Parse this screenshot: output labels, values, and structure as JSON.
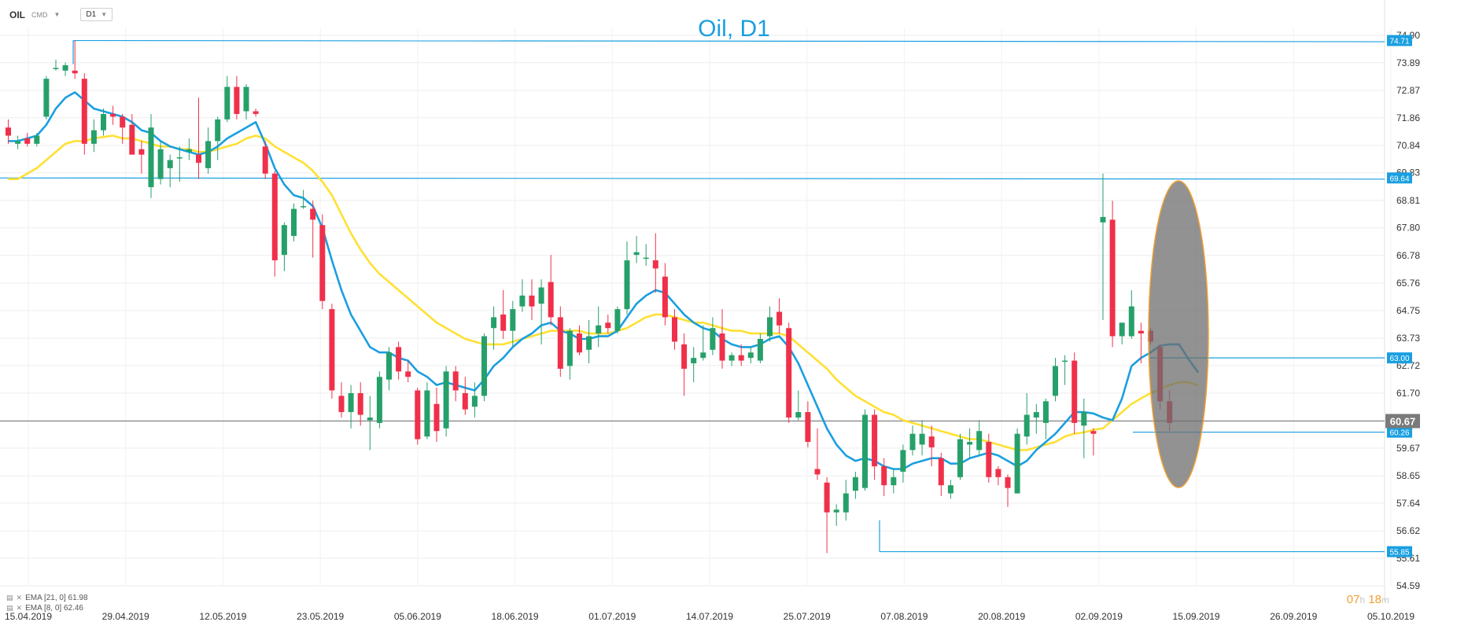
{
  "toolbar": {
    "symbol": "OIL",
    "market": "CMD",
    "timeframe": "D1"
  },
  "chart_title": "Oil, D1",
  "legend": [
    {
      "label": "EMA [21, 0] 61.98"
    },
    {
      "label": "EMA [8, 0] 62.46"
    }
  ],
  "timer": {
    "h": "07",
    "hu": "h",
    "m": "18",
    "mu": "m"
  },
  "colors": {
    "up": "#26a06a",
    "down": "#f0304a",
    "ema21": "#ffe033",
    "ema8": "#1a9fe0",
    "level": "#1a9fe0",
    "current": "#909090"
  },
  "chart_data": {
    "type": "candlestick",
    "title": "Oil, D1",
    "x_ticks": [
      "15.04.2019",
      "29.04.2019",
      "12.05.2019",
      "23.05.2019",
      "05.06.2019",
      "18.06.2019",
      "01.07.2019",
      "14.07.2019",
      "25.07.2019",
      "07.08.2019",
      "20.08.2019",
      "02.09.2019",
      "15.09.2019",
      "26.09.2019",
      "05.10.2019"
    ],
    "y_ticks": [
      "74.90",
      "73.89",
      "72.87",
      "71.86",
      "70.84",
      "69.83",
      "68.81",
      "67.80",
      "66.78",
      "65.76",
      "64.75",
      "63.73",
      "62.72",
      "61.70",
      "60.69",
      "59.67",
      "58.65",
      "57.64",
      "56.62",
      "55.61",
      "54.59"
    ],
    "ylim": [
      54.59,
      74.9
    ],
    "candles": [
      [
        71.5,
        71.8,
        70.9,
        71.2
      ],
      [
        70.9,
        71.2,
        70.7,
        71.0
      ],
      [
        71.1,
        71.3,
        70.8,
        70.9
      ],
      [
        70.9,
        71.3,
        70.8,
        71.2
      ],
      [
        71.9,
        73.4,
        71.8,
        73.3
      ],
      [
        73.7,
        74.0,
        73.6,
        73.7
      ],
      [
        73.6,
        73.9,
        73.4,
        73.8
      ],
      [
        73.6,
        74.7,
        73.3,
        73.5
      ],
      [
        73.3,
        73.5,
        70.5,
        70.9
      ],
      [
        70.9,
        71.8,
        70.6,
        71.4
      ],
      [
        71.4,
        72.2,
        71.2,
        72.0
      ],
      [
        72.0,
        72.3,
        71.6,
        71.9
      ],
      [
        71.9,
        72.0,
        70.9,
        71.5
      ],
      [
        71.6,
        72.0,
        70.5,
        70.5
      ],
      [
        70.7,
        71.0,
        69.8,
        70.5
      ],
      [
        69.3,
        72.0,
        68.9,
        71.5
      ],
      [
        69.6,
        71.0,
        69.4,
        70.7
      ],
      [
        70.0,
        70.5,
        69.3,
        70.3
      ],
      [
        70.4,
        70.8,
        69.5,
        70.4
      ],
      [
        70.6,
        71.1,
        70.3,
        70.7
      ],
      [
        70.5,
        72.6,
        69.6,
        70.2
      ],
      [
        70.0,
        71.5,
        69.8,
        71.0
      ],
      [
        71.0,
        71.9,
        70.3,
        71.8
      ],
      [
        71.8,
        73.4,
        71.7,
        73.0
      ],
      [
        73.0,
        73.4,
        71.8,
        72.0
      ],
      [
        72.1,
        73.1,
        71.8,
        73.0
      ],
      [
        72.1,
        72.2,
        71.9,
        72.0
      ],
      [
        70.8,
        71.0,
        69.6,
        69.8
      ],
      [
        69.8,
        69.9,
        66.0,
        66.6
      ],
      [
        66.8,
        68.0,
        66.2,
        67.9
      ],
      [
        67.5,
        68.7,
        67.3,
        68.5
      ],
      [
        68.6,
        69.2,
        68.5,
        68.6
      ],
      [
        68.5,
        68.8,
        66.7,
        68.1
      ],
      [
        67.9,
        68.3,
        64.8,
        65.1
      ],
      [
        64.8,
        65.0,
        61.5,
        61.8
      ],
      [
        61.6,
        62.1,
        60.8,
        61.0
      ],
      [
        61.0,
        62.0,
        60.4,
        61.7
      ],
      [
        61.7,
        62.1,
        60.5,
        60.9
      ],
      [
        60.7,
        61.6,
        59.6,
        60.8
      ],
      [
        60.6,
        62.5,
        60.4,
        62.3
      ],
      [
        62.2,
        63.4,
        61.8,
        63.2
      ],
      [
        63.4,
        63.6,
        62.2,
        62.5
      ],
      [
        62.5,
        62.9,
        62.1,
        62.3
      ],
      [
        61.8,
        61.9,
        59.8,
        60.0
      ],
      [
        60.1,
        62.1,
        60.0,
        61.8
      ],
      [
        61.3,
        61.9,
        59.9,
        60.3
      ],
      [
        60.4,
        62.7,
        60.1,
        62.5
      ],
      [
        62.5,
        62.7,
        61.4,
        61.8
      ],
      [
        61.7,
        62.3,
        60.9,
        61.1
      ],
      [
        61.2,
        62.1,
        60.8,
        61.6
      ],
      [
        61.6,
        63.9,
        61.4,
        63.8
      ],
      [
        64.1,
        64.9,
        63.3,
        64.5
      ],
      [
        64.6,
        65.5,
        63.7,
        64.0
      ],
      [
        64.0,
        65.1,
        63.4,
        64.8
      ],
      [
        64.9,
        65.9,
        64.7,
        65.3
      ],
      [
        65.3,
        65.9,
        64.4,
        64.9
      ],
      [
        65.0,
        65.9,
        63.5,
        65.6
      ],
      [
        65.8,
        66.8,
        64.2,
        64.5
      ],
      [
        64.5,
        64.9,
        62.3,
        62.6
      ],
      [
        62.7,
        64.1,
        62.2,
        64.0
      ],
      [
        63.9,
        64.2,
        63.1,
        63.2
      ],
      [
        63.3,
        64.4,
        62.8,
        63.8
      ],
      [
        63.9,
        64.9,
        63.4,
        64.2
      ],
      [
        64.3,
        64.6,
        63.9,
        64.1
      ],
      [
        64.0,
        64.9,
        63.9,
        64.8
      ],
      [
        64.8,
        67.3,
        64.6,
        66.6
      ],
      [
        66.8,
        67.5,
        66.5,
        66.9
      ],
      [
        66.7,
        67.2,
        66.4,
        66.7
      ],
      [
        66.6,
        67.6,
        65.4,
        66.3
      ],
      [
        66.0,
        66.5,
        64.2,
        64.5
      ],
      [
        64.5,
        64.8,
        63.3,
        63.6
      ],
      [
        63.5,
        63.9,
        61.6,
        62.6
      ],
      [
        62.8,
        63.4,
        62.1,
        63.0
      ],
      [
        63.0,
        64.2,
        62.9,
        63.2
      ],
      [
        63.3,
        64.5,
        63.1,
        64.1
      ],
      [
        63.9,
        64.8,
        62.6,
        62.9
      ],
      [
        62.9,
        63.2,
        62.7,
        63.1
      ],
      [
        63.1,
        63.5,
        62.7,
        62.9
      ],
      [
        63.0,
        63.4,
        62.8,
        63.2
      ],
      [
        62.9,
        63.9,
        62.8,
        63.7
      ],
      [
        63.8,
        64.9,
        63.6,
        64.5
      ],
      [
        64.7,
        65.2,
        63.9,
        64.2
      ],
      [
        64.1,
        64.3,
        60.6,
        60.8
      ],
      [
        60.8,
        61.8,
        60.7,
        61.0
      ],
      [
        61.0,
        61.4,
        59.7,
        59.9
      ],
      [
        58.9,
        60.4,
        58.5,
        58.7
      ],
      [
        58.4,
        58.6,
        55.8,
        57.3
      ],
      [
        57.3,
        57.6,
        56.8,
        57.4
      ],
      [
        57.3,
        58.5,
        57.0,
        58.0
      ],
      [
        58.1,
        58.8,
        57.8,
        58.6
      ],
      [
        58.2,
        61.1,
        58.1,
        60.9
      ],
      [
        60.9,
        61.1,
        58.5,
        59.0
      ],
      [
        59.0,
        59.3,
        57.9,
        58.3
      ],
      [
        58.3,
        58.9,
        58.0,
        58.6
      ],
      [
        58.8,
        59.8,
        58.4,
        59.6
      ],
      [
        59.6,
        60.5,
        59.4,
        60.2
      ],
      [
        59.8,
        60.7,
        59.4,
        60.2
      ],
      [
        60.1,
        60.5,
        59.0,
        59.7
      ],
      [
        59.3,
        59.5,
        57.9,
        58.3
      ],
      [
        58.0,
        58.5,
        57.8,
        58.3
      ],
      [
        58.6,
        60.2,
        58.5,
        60.0
      ],
      [
        59.8,
        60.4,
        59.3,
        59.9
      ],
      [
        59.6,
        60.7,
        59.4,
        60.3
      ],
      [
        59.9,
        60.2,
        58.4,
        58.6
      ],
      [
        58.9,
        59.0,
        58.3,
        58.6
      ],
      [
        58.6,
        58.7,
        57.5,
        58.2
      ],
      [
        58.0,
        60.4,
        58.0,
        60.2
      ],
      [
        60.1,
        61.7,
        59.8,
        60.9
      ],
      [
        60.8,
        61.3,
        60.2,
        61.0
      ],
      [
        60.6,
        61.5,
        60.0,
        61.4
      ],
      [
        61.6,
        63.0,
        61.4,
        62.7
      ],
      [
        62.9,
        63.1,
        62.0,
        62.9
      ],
      [
        62.9,
        63.2,
        60.2,
        60.6
      ],
      [
        60.5,
        61.5,
        59.3,
        61.0
      ],
      [
        60.3,
        60.4,
        59.4,
        60.2
      ],
      [
        68.0,
        69.8,
        64.4,
        68.2
      ],
      [
        68.1,
        68.8,
        63.4,
        63.8
      ],
      [
        63.8,
        64.2,
        63.5,
        64.3
      ],
      [
        63.8,
        65.5,
        63.7,
        64.9
      ],
      [
        64.0,
        64.3,
        62.8,
        63.9
      ],
      [
        64.0,
        64.1,
        63.5,
        63.6
      ],
      [
        63.4,
        63.5,
        61.1,
        61.4
      ],
      [
        61.4,
        61.8,
        60.3,
        60.6
      ]
    ],
    "series": [
      {
        "name": "EMA [21, 0]",
        "last": 61.98,
        "values": [
          69.6,
          69.6,
          69.8,
          70.0,
          70.3,
          70.6,
          70.9,
          71.0,
          71.0,
          71.1,
          71.15,
          71.2,
          71.1,
          71.1,
          71.0,
          70.9,
          70.8,
          70.8,
          70.7,
          70.7,
          70.6,
          70.6,
          70.7,
          70.8,
          70.9,
          71.1,
          71.2,
          71.1,
          70.8,
          70.6,
          70.4,
          70.2,
          69.9,
          69.5,
          69.0,
          68.3,
          67.6,
          67.0,
          66.5,
          66.1,
          65.8,
          65.5,
          65.2,
          64.9,
          64.6,
          64.3,
          64.1,
          63.9,
          63.7,
          63.6,
          63.5,
          63.5,
          63.5,
          63.6,
          63.7,
          63.8,
          63.9,
          64.0,
          64.0,
          64.0,
          64.0,
          63.9,
          63.9,
          63.9,
          64.0,
          64.1,
          64.3,
          64.5,
          64.6,
          64.6,
          64.5,
          64.4,
          64.3,
          64.3,
          64.2,
          64.1,
          64.0,
          64.0,
          63.9,
          63.9,
          63.9,
          63.9,
          63.8,
          63.5,
          63.2,
          62.9,
          62.6,
          62.2,
          61.9,
          61.6,
          61.4,
          61.2,
          61.0,
          60.9,
          60.7,
          60.6,
          60.5,
          60.4,
          60.3,
          60.2,
          60.1,
          60.0,
          60.0,
          59.9,
          59.8,
          59.7,
          59.6,
          59.6,
          59.7,
          59.8,
          59.9,
          60.1,
          60.2,
          60.25,
          60.35,
          60.4,
          60.7,
          61.0,
          61.3,
          61.5,
          61.7,
          61.85,
          62.0,
          62.1,
          62.1,
          61.98
        ]
      },
      {
        "name": "EMA [8, 0]",
        "last": 62.46,
        "values": [
          71.0,
          71.0,
          71.1,
          71.2,
          71.6,
          72.2,
          72.6,
          72.8,
          72.5,
          72.2,
          72.1,
          72.0,
          71.9,
          71.7,
          71.4,
          71.3,
          71.0,
          70.8,
          70.7,
          70.6,
          70.5,
          70.6,
          70.8,
          71.1,
          71.3,
          71.5,
          71.7,
          70.9,
          70.0,
          69.4,
          69.0,
          68.9,
          68.6,
          67.8,
          66.6,
          65.5,
          64.6,
          64.0,
          63.4,
          63.2,
          63.2,
          63.0,
          62.9,
          62.5,
          62.3,
          62.0,
          62.1,
          62.0,
          61.9,
          61.8,
          62.2,
          62.7,
          63.0,
          63.4,
          63.7,
          63.9,
          64.2,
          64.3,
          64.0,
          63.9,
          63.7,
          63.7,
          63.8,
          63.8,
          64.0,
          64.5,
          65.0,
          65.3,
          65.5,
          65.4,
          65.0,
          64.6,
          64.3,
          64.1,
          64.0,
          63.7,
          63.5,
          63.4,
          63.4,
          63.5,
          63.7,
          63.8,
          63.4,
          62.8,
          62.0,
          61.2,
          60.4,
          59.8,
          59.4,
          59.2,
          59.3,
          59.2,
          59.0,
          58.9,
          58.9,
          59.1,
          59.2,
          59.3,
          59.3,
          59.1,
          59.1,
          59.3,
          59.4,
          59.5,
          59.4,
          59.2,
          59.0,
          59.2,
          59.6,
          59.9,
          60.2,
          60.6,
          61.0,
          61.0,
          60.95,
          60.8,
          60.7,
          61.5,
          62.7,
          63.0,
          63.2,
          63.45,
          63.5,
          63.5,
          62.95,
          62.46
        ]
      }
    ],
    "levels": [
      74.71,
      69.64,
      63.0,
      60.26,
      55.85
    ],
    "current_price": 60.67,
    "labels": {
      "l1": "74.71",
      "l2": "69.64",
      "l3": "63.00",
      "l4": "60.26",
      "l5": "55.85",
      "cur": "60.67"
    }
  }
}
